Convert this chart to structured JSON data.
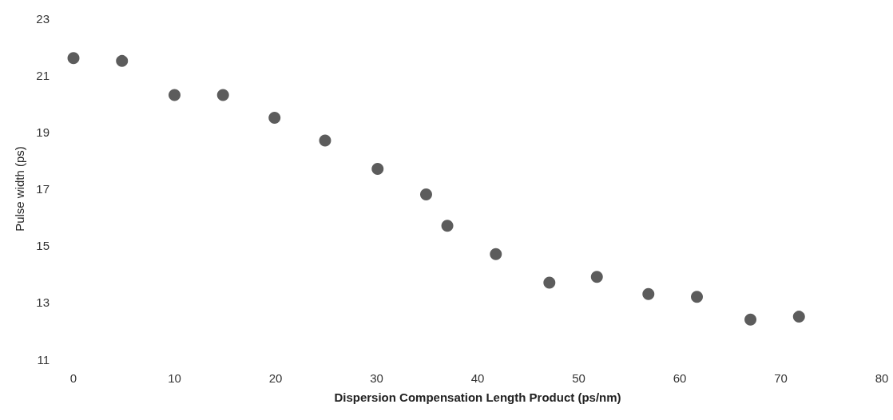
{
  "chart_data": {
    "type": "scatter",
    "xlabel": "Dispersion Compensation Length Product (ps/nm)",
    "ylabel": "Pulse width (ps)",
    "x": [
      0,
      4.8,
      10,
      14.8,
      19.9,
      24.9,
      30.1,
      34.9,
      37,
      41.8,
      47.1,
      51.8,
      56.9,
      61.7,
      67,
      71.8
    ],
    "values": [
      21.6,
      21.5,
      20.3,
      20.3,
      19.5,
      18.7,
      17.7,
      16.8,
      15.7,
      14.7,
      13.7,
      13.9,
      13.3,
      13.2,
      12.4,
      12.5
    ],
    "color": "#333333",
    "marker": "circle",
    "xlim": [
      0,
      80
    ],
    "xticks": [
      0,
      10,
      20,
      30,
      40,
      50,
      60,
      70,
      80
    ],
    "ylim": [
      11,
      23
    ],
    "yticks": [
      11,
      13,
      15,
      17,
      19,
      21,
      23
    ],
    "grid": false
  }
}
